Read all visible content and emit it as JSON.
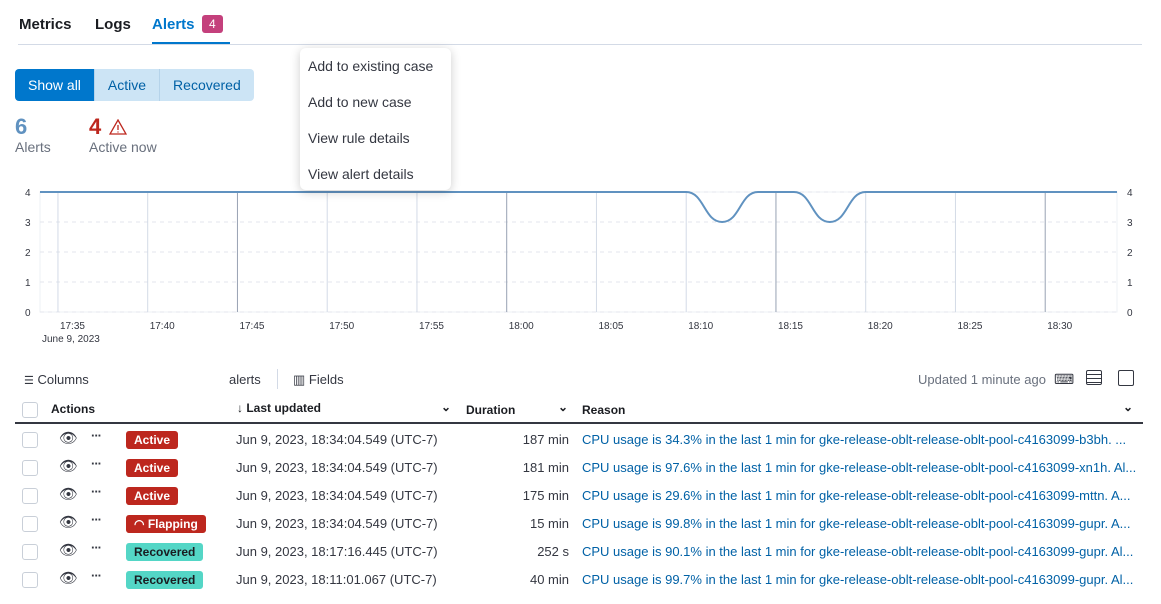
{
  "tabs": [
    {
      "label": "Metrics"
    },
    {
      "label": "Logs"
    },
    {
      "label": "Alerts",
      "badge": "4"
    }
  ],
  "filters": {
    "show_all": "Show all",
    "active": "Active",
    "recovered": "Recovered"
  },
  "stats": {
    "alerts_count": "6",
    "alerts_label": "Alerts",
    "active_count": "4",
    "active_label": "Active now"
  },
  "chart_data": {
    "type": "line",
    "x_ticks": [
      "17:35",
      "17:40",
      "17:45",
      "17:50",
      "17:55",
      "18:00",
      "18:05",
      "18:10",
      "18:15",
      "18:20",
      "18:25",
      "18:30"
    ],
    "x_sublabel": "June 9, 2023",
    "y_ticks": [
      "0",
      "1",
      "2",
      "3",
      "4"
    ],
    "ylim": [
      0,
      4
    ],
    "grid": true,
    "x_range": [
      "17:34",
      "18:34"
    ],
    "points": [
      [
        "17:34",
        4
      ],
      [
        "18:10",
        4
      ],
      [
        "18:12",
        3
      ],
      [
        "18:14",
        4
      ],
      [
        "18:16",
        4
      ],
      [
        "18:18",
        3
      ],
      [
        "18:20",
        4
      ],
      [
        "18:34",
        4
      ]
    ],
    "color": "#6092c0"
  },
  "menu": [
    "Add to existing case",
    "Add to new case",
    "View rule details",
    "View alert details"
  ],
  "toolbar": {
    "columns": "Columns",
    "alerts": "alerts",
    "fields": "Fields",
    "updated": "Updated 1 minute ago"
  },
  "table": {
    "headers": {
      "actions": "Actions",
      "last_updated": "Last updated",
      "duration": "Duration",
      "reason": "Reason"
    },
    "rows": [
      {
        "status": "Active",
        "updated": "Jun 9, 2023, 18:34:04.549 (UTC-7)",
        "duration": "187 min",
        "reason": "CPU usage is 34.3% in the last 1 min for gke-release-oblt-release-oblt-pool-c4163099-b3bh. ..."
      },
      {
        "status": "Active",
        "updated": "Jun 9, 2023, 18:34:04.549 (UTC-7)",
        "duration": "181 min",
        "reason": "CPU usage is 97.6% in the last 1 min for gke-release-oblt-release-oblt-pool-c4163099-xn1h. Al..."
      },
      {
        "status": "Active",
        "updated": "Jun 9, 2023, 18:34:04.549 (UTC-7)",
        "duration": "175 min",
        "reason": "CPU usage is 29.6% in the last 1 min for gke-release-oblt-release-oblt-pool-c4163099-mttn. A..."
      },
      {
        "status": "Flapping",
        "updated": "Jun 9, 2023, 18:34:04.549 (UTC-7)",
        "duration": "15 min",
        "reason": "CPU usage is 99.8% in the last 1 min for gke-release-oblt-release-oblt-pool-c4163099-gupr. A..."
      },
      {
        "status": "Recovered",
        "updated": "Jun 9, 2023, 18:17:16.445 (UTC-7)",
        "duration": "252 s",
        "reason": "CPU usage is 90.1% in the last 1 min for gke-release-oblt-release-oblt-pool-c4163099-gupr. Al..."
      },
      {
        "status": "Recovered",
        "updated": "Jun 9, 2023, 18:11:01.067 (UTC-7)",
        "duration": "40 min",
        "reason": "CPU usage is 99.7% in the last 1 min for gke-release-oblt-release-oblt-pool-c4163099-gupr. Al..."
      }
    ]
  },
  "colors": {
    "active": "#bd271e",
    "recovered": "#54d6c6",
    "link": "#0061a6"
  }
}
